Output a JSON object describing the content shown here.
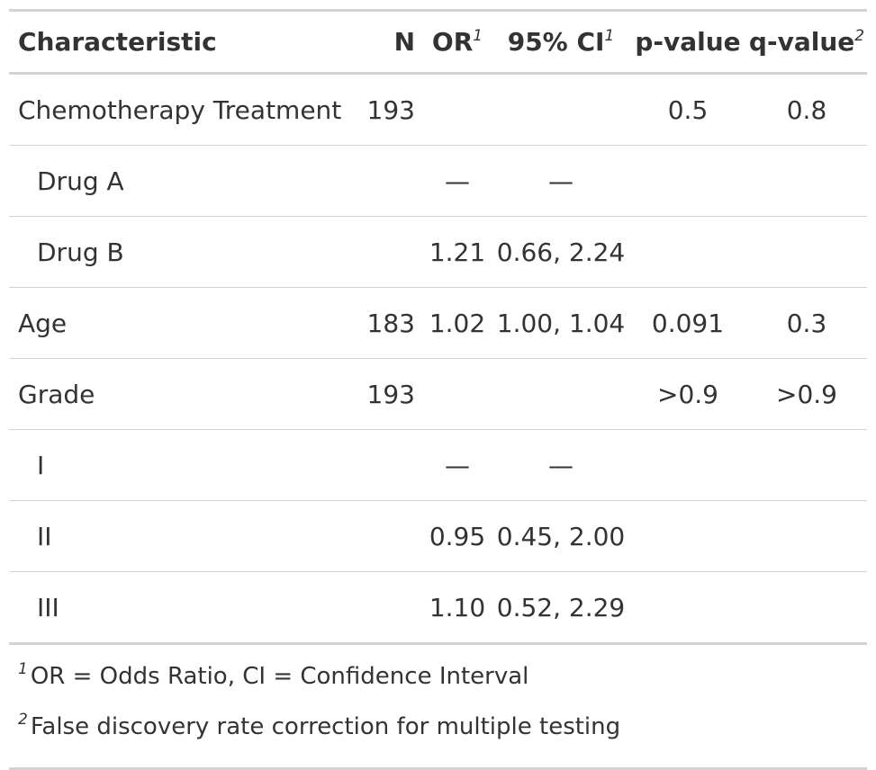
{
  "table": {
    "headers": {
      "characteristic": "Characteristic",
      "n": "N",
      "or": "OR",
      "or_mark": "1",
      "ci": "95% CI",
      "ci_mark": "1",
      "p": "p-value",
      "q": "q-value",
      "q_mark": "2"
    },
    "rows": [
      {
        "label": "Chemotherapy Treatment",
        "n": "193",
        "or": "",
        "ci": "",
        "p": "0.5",
        "q": "0.8"
      },
      {
        "label": "Drug A",
        "n": "",
        "or": "—",
        "ci": "—",
        "p": "",
        "q": ""
      },
      {
        "label": "Drug B",
        "n": "",
        "or": "1.21",
        "ci": "0.66, 2.24",
        "p": "",
        "q": ""
      },
      {
        "label": "Age",
        "n": "183",
        "or": "1.02",
        "ci": "1.00, 1.04",
        "p": "0.091",
        "q": "0.3"
      },
      {
        "label": "Grade",
        "n": "193",
        "or": "",
        "ci": "",
        "p": ">0.9",
        "q": ">0.9"
      },
      {
        "label": "I",
        "n": "",
        "or": "—",
        "ci": "—",
        "p": "",
        "q": ""
      },
      {
        "label": "II",
        "n": "",
        "or": "0.95",
        "ci": "0.45, 2.00",
        "p": "",
        "q": ""
      },
      {
        "label": "III",
        "n": "",
        "or": "1.10",
        "ci": "0.52, 2.29",
        "p": "",
        "q": ""
      }
    ]
  },
  "footnotes": [
    {
      "mark": "1",
      "text": "OR = Odds Ratio, CI = Confidence Interval"
    },
    {
      "mark": "2",
      "text": "False discovery rate correction for multiple testing"
    }
  ]
}
